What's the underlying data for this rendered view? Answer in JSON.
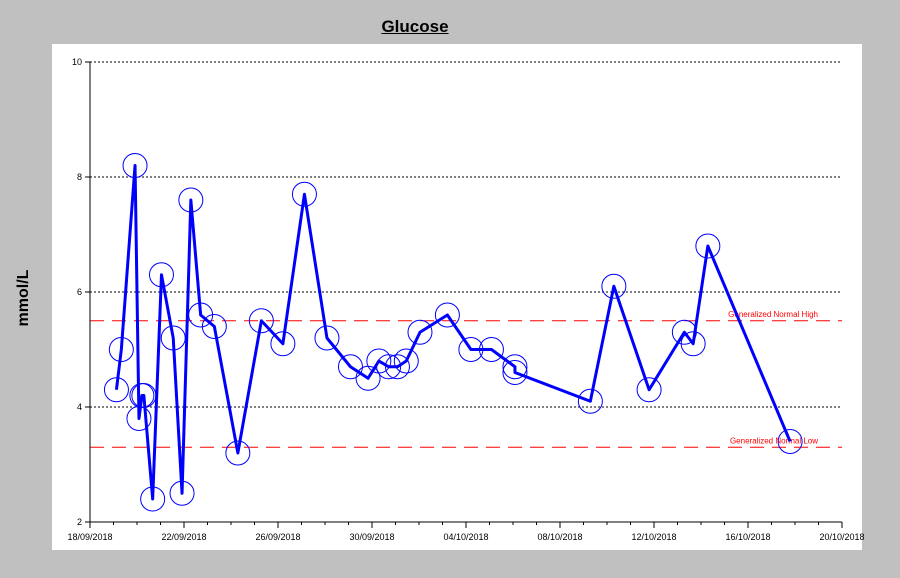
{
  "chart_data": {
    "type": "line",
    "title": "Glucose",
    "ylabel": "mmol/L",
    "xlabel": "",
    "ylim": [
      2,
      10
    ],
    "xlim": [
      "2018-09-18",
      "2018-10-20"
    ],
    "y_ticks": [
      "2",
      "4",
      "6",
      "8",
      "10"
    ],
    "x_ticks": [
      "18/09/2018",
      "22/09/2018",
      "26/09/2018",
      "30/09/2018",
      "04/10/2018",
      "08/10/2018",
      "12/10/2018",
      "16/10/2018",
      "20/10/2018"
    ],
    "grid": "horizontal dotted",
    "series_color": "#0000ff",
    "reference_color": "#ff0000",
    "reference_lines": [
      {
        "label": "Generalized Normal High",
        "value": 5.5
      },
      {
        "label": "Generalized Normal Low",
        "value": 3.3
      }
    ],
    "series": [
      {
        "x": [
          "2018-09-19 03:00",
          "2018-09-19 08:00",
          "2018-09-19 22:00",
          "2018-09-20 02:00",
          "2018-09-20 05:00",
          "2018-09-20 07:00",
          "2018-09-20 16:00",
          "2018-09-21 01:00",
          "2018-09-21 13:00",
          "2018-09-21 22:00",
          "2018-09-22 07:00",
          "2018-09-22 17:00",
          "2018-09-23 07:00",
          "2018-09-24 07:00",
          "2018-09-25 07:00",
          "2018-09-26 05:00",
          "2018-09-27 03:00",
          "2018-09-28 02:00",
          "2018-09-29 02:00",
          "2018-09-29 20:00",
          "2018-09-30 07:00",
          "2018-09-30 17:00",
          "2018-10-01 02:00",
          "2018-10-01 11:00",
          "2018-10-02 01:00",
          "2018-10-03 05:00",
          "2018-10-04 05:00",
          "2018-10-05 02:00",
          "2018-10-06 02:00",
          "2018-10-06 02:00",
          "2018-10-09 07:00",
          "2018-10-10 07:00",
          "2018-10-11 19:00",
          "2018-10-13 07:00",
          "2018-10-13 16:00",
          "2018-10-14 07:00",
          "2018-10-17 19:00"
        ],
        "y": [
          4.3,
          5.0,
          8.2,
          3.8,
          4.2,
          4.2,
          2.4,
          6.3,
          5.2,
          2.5,
          7.6,
          5.6,
          5.4,
          3.2,
          5.5,
          5.1,
          7.7,
          5.2,
          4.7,
          4.5,
          4.8,
          4.7,
          4.7,
          4.8,
          5.3,
          5.6,
          5.0,
          5.0,
          4.7,
          4.6,
          4.1,
          6.1,
          4.3,
          5.3,
          5.1,
          6.8,
          3.4
        ]
      }
    ]
  }
}
